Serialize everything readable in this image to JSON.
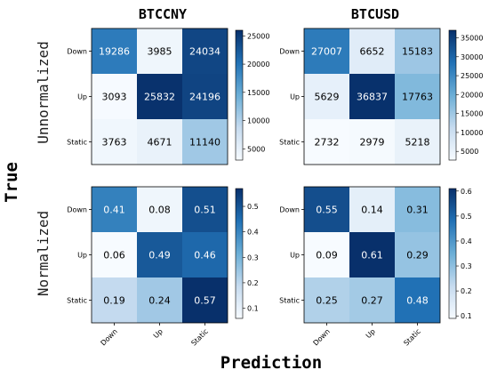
{
  "figure": {
    "column_titles": [
      "BTCCNY",
      "BTCUSD"
    ],
    "row_titles": [
      "Unnormalized",
      "Normalized"
    ],
    "ylabel": "True",
    "xlabel": "Prediction",
    "categories": [
      "Down",
      "Up",
      "Static"
    ]
  },
  "chart_data": [
    {
      "type": "heatmap",
      "title": "BTCCNY",
      "row_group": "Unnormalized",
      "rows": [
        "Down",
        "Up",
        "Static"
      ],
      "cols": [
        "Down",
        "Up",
        "Static"
      ],
      "values": [
        [
          19286,
          3985,
          24034
        ],
        [
          3093,
          25832,
          24196
        ],
        [
          3763,
          4671,
          11140
        ]
      ],
      "vmin": 3000,
      "vmax": 26000,
      "colorbar_ticks": [
        5000,
        10000,
        15000,
        20000,
        25000
      ],
      "colormap": "Blues"
    },
    {
      "type": "heatmap",
      "title": "BTCUSD",
      "row_group": "Unnormalized",
      "rows": [
        "Down",
        "Up",
        "Static"
      ],
      "cols": [
        "Down",
        "Up",
        "Static"
      ],
      "values": [
        [
          27007,
          6652,
          15183
        ],
        [
          5629,
          36837,
          17763
        ],
        [
          2732,
          2979,
          5218
        ]
      ],
      "vmin": 2700,
      "vmax": 37000,
      "colorbar_ticks": [
        5000,
        10000,
        15000,
        20000,
        25000,
        30000,
        35000
      ],
      "colormap": "Blues"
    },
    {
      "type": "heatmap",
      "title": "",
      "row_group": "Normalized",
      "rows": [
        "Down",
        "Up",
        "Static"
      ],
      "cols": [
        "Down",
        "Up",
        "Static"
      ],
      "values": [
        [
          "0.41",
          "0.08",
          "0.51"
        ],
        [
          "0.06",
          "0.49",
          "0.46"
        ],
        [
          "0.19",
          "0.24",
          "0.57"
        ]
      ],
      "vmin": 0.06,
      "vmax": 0.57,
      "colorbar_ticks": [
        "0.1",
        "0.2",
        "0.3",
        "0.4",
        "0.5"
      ],
      "colormap": "Blues"
    },
    {
      "type": "heatmap",
      "title": "",
      "row_group": "Normalized",
      "rows": [
        "Down",
        "Up",
        "Static"
      ],
      "cols": [
        "Down",
        "Up",
        "Static"
      ],
      "values": [
        [
          "0.55",
          "0.14",
          "0.31"
        ],
        [
          "0.09",
          "0.61",
          "0.29"
        ],
        [
          "0.25",
          "0.27",
          "0.48"
        ]
      ],
      "vmin": 0.09,
      "vmax": 0.61,
      "colorbar_ticks": [
        "0.1",
        "0.2",
        "0.3",
        "0.4",
        "0.5",
        "0.6"
      ],
      "colormap": "Blues"
    }
  ]
}
